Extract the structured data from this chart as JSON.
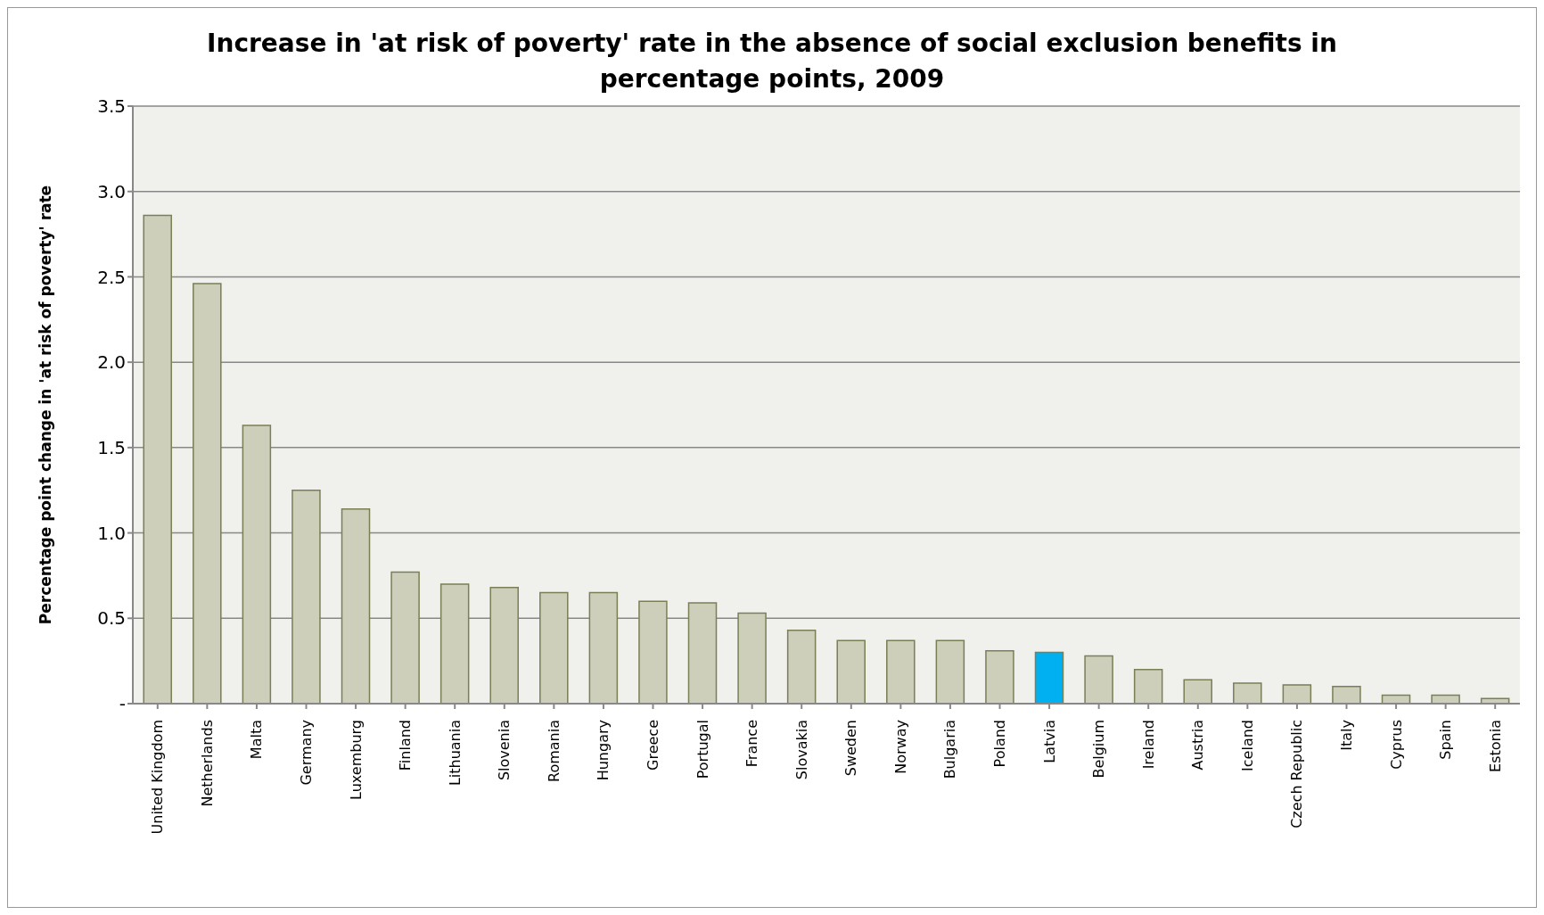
{
  "chart_data": {
    "type": "bar",
    "title": "Increase in 'at risk of poverty' rate in the absence of social exclusion benefits in percentage points, 2009",
    "ylabel": "Percentage point change in 'at risk of poverty' rate",
    "categories": [
      "United Kingdom",
      "Netherlands",
      "Malta",
      "Germany",
      "Luxemburg",
      "Finland",
      "Lithuania",
      "Slovenia",
      "Romania",
      "Hungary",
      "Greece",
      "Portugal",
      "France",
      "Slovakia",
      "Sweden",
      "Norway",
      "Bulgaria",
      "Poland",
      "Latvia",
      "Belgium",
      "Ireland",
      "Austria",
      "Iceland",
      "Czech Republic",
      "Italy",
      "Cyprus",
      "Spain",
      "Estonia"
    ],
    "values": [
      2.86,
      2.46,
      1.63,
      1.25,
      1.14,
      0.77,
      0.7,
      0.68,
      0.65,
      0.65,
      0.6,
      0.59,
      0.53,
      0.43,
      0.37,
      0.37,
      0.37,
      0.31,
      0.3,
      0.28,
      0.2,
      0.14,
      0.12,
      0.11,
      0.1,
      0.05,
      0.05,
      0.03
    ],
    "colors": [
      "#cdcfbb",
      "#cdcfbb",
      "#cdcfbb",
      "#cdcfbb",
      "#cdcfbb",
      "#cdcfbb",
      "#cdcfbb",
      "#cdcfbb",
      "#cdcfbb",
      "#cdcfbb",
      "#cdcfbb",
      "#cdcfbb",
      "#cdcfbb",
      "#cdcfbb",
      "#cdcfbb",
      "#cdcfbb",
      "#cdcfbb",
      "#cdcfbb",
      "#00b0f0",
      "#cdcfbb",
      "#cdcfbb",
      "#cdcfbb",
      "#cdcfbb",
      "#cdcfbb",
      "#cdcfbb",
      "#cdcfbb",
      "#cdcfbb",
      "#cdcfbb"
    ],
    "ylim": [
      0,
      3.5
    ],
    "yticks": [
      {
        "value": 0,
        "label": "-"
      },
      0.5,
      {
        "value": 1,
        "label": "1.0"
      },
      1.5,
      {
        "value": 2,
        "label": "2.0"
      },
      2.5,
      {
        "value": 3,
        "label": "3.0"
      },
      3.5
    ],
    "grid": "y"
  }
}
